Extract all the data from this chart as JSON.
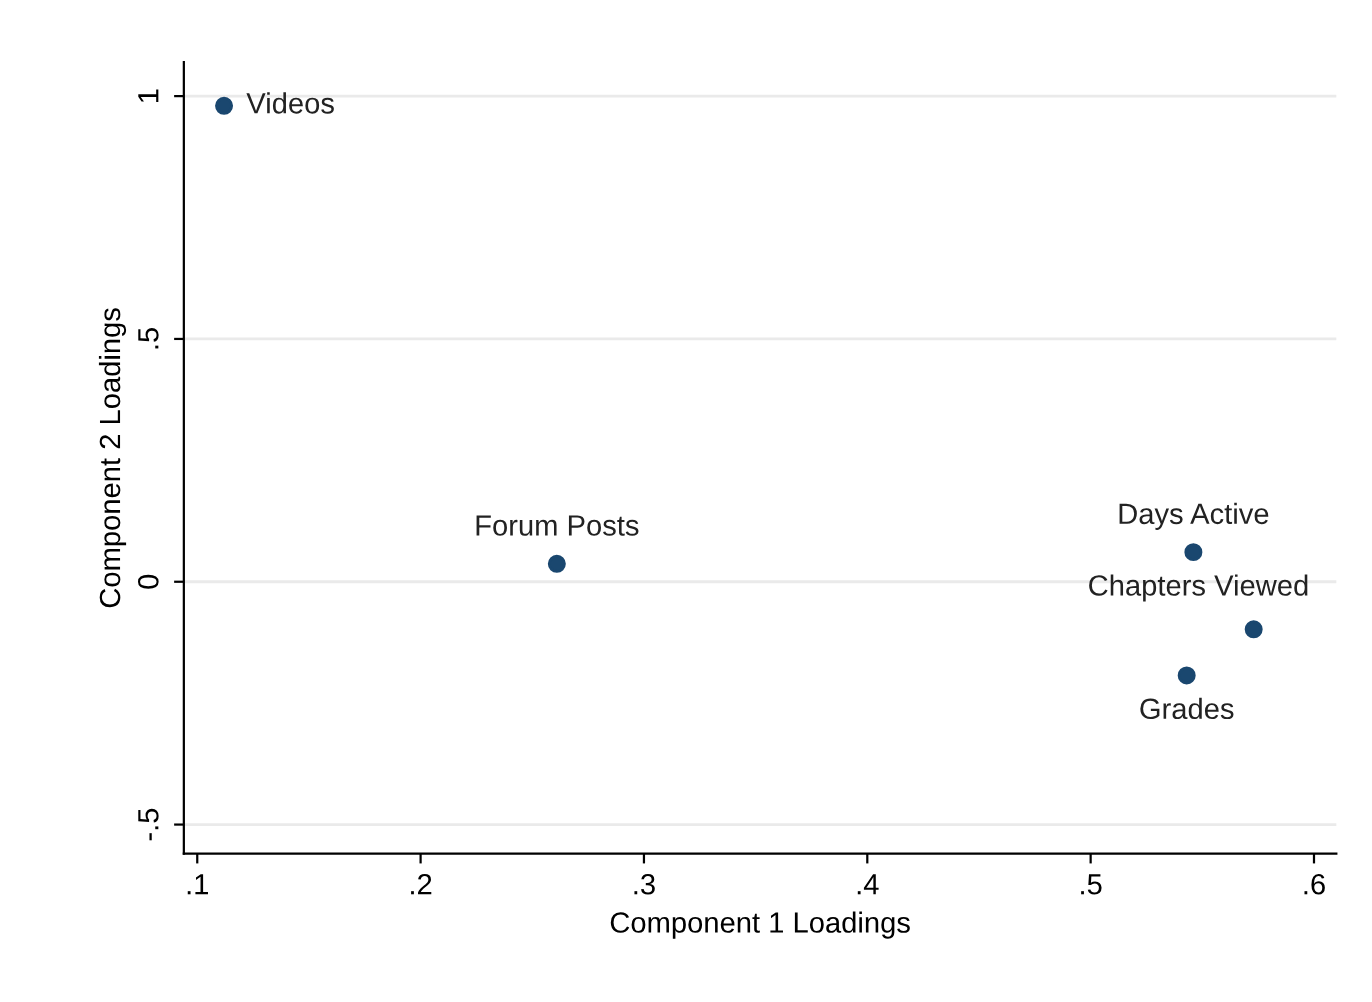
{
  "chart_data": {
    "type": "scatter",
    "xlabel": "Component 1 Loadings",
    "ylabel": "Component 2 Loadings",
    "x": [
      0.112,
      0.261,
      0.546,
      0.573,
      0.543
    ],
    "series": [
      {
        "color": "#1a476f",
        "values": [
          0.98,
          0.037,
          0.061,
          -0.098,
          -0.193
        ]
      }
    ],
    "annotations": [
      {
        "text": "Videos",
        "x": 0.112,
        "y": 0.98
      },
      {
        "text": "Forum Posts",
        "x": 0.261,
        "y": 0.037
      },
      {
        "text": "Days Active",
        "x": 0.546,
        "y": 0.061
      },
      {
        "text": "Chapters Viewed",
        "x": 0.573,
        "y": -0.098
      },
      {
        "text": "Grades",
        "x": 0.543,
        "y": -0.193
      }
    ],
    "xlim": [
      0.094,
      0.61
    ],
    "ylim": [
      -0.56,
      1.07
    ],
    "xticks": [
      {
        "value": 0.1,
        "label": ".1"
      },
      {
        "value": 0.2,
        "label": ".2"
      },
      {
        "value": 0.3,
        "label": ".3"
      },
      {
        "value": 0.4,
        "label": ".4"
      },
      {
        "value": 0.5,
        "label": ".5"
      },
      {
        "value": 0.6,
        "label": ".6"
      }
    ],
    "yticks": [
      {
        "value": -0.5,
        "label": "-.5"
      },
      {
        "value": 0,
        "label": "0"
      },
      {
        "value": 0.5,
        "label": ".5"
      },
      {
        "value": 1,
        "label": "1"
      }
    ],
    "grid": "y",
    "marker": "circle"
  }
}
